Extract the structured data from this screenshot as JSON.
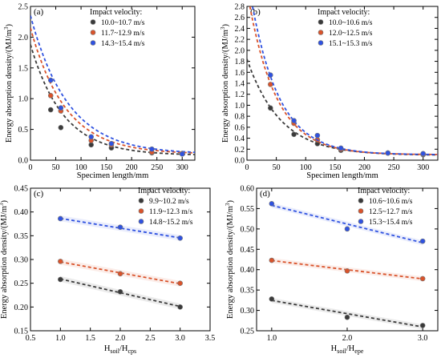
{
  "chart_data": [
    {
      "panel": "(a)",
      "type": "scatter",
      "xlabel": "Specimen length/mm",
      "ylabel": "Energy absorption density/(MJ/m3)",
      "xlim": [
        0,
        325
      ],
      "ylim": [
        0,
        2.5
      ],
      "xticks": [
        0,
        50,
        100,
        150,
        200,
        250,
        300
      ],
      "yticks": [
        0.0,
        0.5,
        1.0,
        1.5,
        2.0,
        2.5
      ],
      "legend_title": "Impact velocity:",
      "legend_position": "top-right",
      "series": [
        {
          "name": "10.0~10.7 m/s",
          "color": "#3a3a3a",
          "x": [
            40,
            60,
            120,
            160,
            240,
            300
          ],
          "y": [
            0.82,
            0.53,
            0.25,
            0.2,
            0.12,
            0.1
          ],
          "fit": {
            "a": 1.8,
            "k": 0.0155,
            "c": 0.08
          }
        },
        {
          "name": "11.7~12.9 m/s",
          "color": "#d9532b",
          "x": [
            40,
            60,
            120,
            160,
            240,
            300
          ],
          "y": [
            1.05,
            0.8,
            0.32,
            0.25,
            0.13,
            0.11
          ],
          "fit": {
            "a": 2.05,
            "k": 0.0145,
            "c": 0.1
          }
        },
        {
          "name": "14.3~15.4 m/s",
          "color": "#2f52e0",
          "x": [
            40,
            60,
            120,
            160,
            240,
            300
          ],
          "y": [
            1.3,
            0.85,
            0.38,
            0.27,
            0.18,
            0.1
          ],
          "fit": {
            "a": 2.25,
            "k": 0.0135,
            "c": 0.1
          }
        }
      ]
    },
    {
      "panel": "(b)",
      "type": "scatter",
      "xlabel": "Specimen length/mm",
      "ylabel": "Energy absorption density/(MJ/m3)",
      "xlim": [
        0,
        325
      ],
      "ylim": [
        0,
        2.8
      ],
      "xticks": [
        0,
        50,
        100,
        150,
        200,
        250,
        300
      ],
      "yticks": [
        0.0,
        0.2,
        0.4,
        0.6,
        0.8,
        1.0,
        1.2,
        1.4,
        1.6,
        1.8,
        2.0,
        2.2,
        2.4,
        2.6,
        2.8
      ],
      "legend_title": "Impact velocity:",
      "legend_position": "top-right",
      "series": [
        {
          "name": "10.0~10.6 m/s",
          "color": "#3a3a3a",
          "x": [
            40,
            80,
            120,
            160,
            240,
            300
          ],
          "y": [
            0.95,
            0.47,
            0.3,
            0.18,
            0.13,
            0.1
          ],
          "fit": {
            "a": 1.75,
            "k": 0.0175,
            "c": 0.09
          }
        },
        {
          "name": "12.0~12.5 m/s",
          "color": "#d9532b",
          "x": [
            40,
            80,
            120,
            160,
            240,
            300
          ],
          "y": [
            1.38,
            0.67,
            0.37,
            0.2,
            0.13,
            0.11
          ],
          "fit": {
            "a": 3.0,
            "k": 0.021,
            "c": 0.1
          }
        },
        {
          "name": "15.1~15.3 m/s",
          "color": "#2f52e0",
          "x": [
            40,
            80,
            120,
            160,
            240,
            300
          ],
          "y": [
            1.55,
            0.72,
            0.45,
            0.22,
            0.13,
            0.12
          ],
          "fit": {
            "a": 3.3,
            "k": 0.021,
            "c": 0.1
          }
        }
      ]
    },
    {
      "panel": "(c)",
      "type": "scatter",
      "xlabel_main": "H",
      "xlabel_sub1": "soil",
      "xlabel_mid": "/H",
      "xlabel_sub2": "cps",
      "ylabel": "Energy absorption density/(MJ/m3)",
      "xlim": [
        0.5,
        3.5
      ],
      "ylim": [
        0.15,
        0.45
      ],
      "xticks": [
        0.5,
        1.0,
        1.5,
        2.0,
        2.5,
        3.0,
        3.5
      ],
      "yticks": [
        0.15,
        0.2,
        0.25,
        0.3,
        0.35,
        0.4,
        0.45
      ],
      "legend_title": "Impact velocity:",
      "legend_position": "top-right",
      "series": [
        {
          "name": "9.9~10.2 m/s",
          "color": "#3a3a3a",
          "x": [
            1.0,
            2.0,
            3.0
          ],
          "y": [
            0.258,
            0.232,
            0.2
          ],
          "fit": {
            "m": -0.029,
            "b": 0.288
          }
        },
        {
          "name": "11.9~12.3 m/s",
          "color": "#d9532b",
          "x": [
            1.0,
            2.0,
            3.0
          ],
          "y": [
            0.296,
            0.27,
            0.25
          ],
          "fit": {
            "m": -0.023,
            "b": 0.318
          }
        },
        {
          "name": "14.8~15.2 m/s",
          "color": "#2f52e0",
          "x": [
            1.0,
            2.0,
            3.0
          ],
          "y": [
            0.386,
            0.368,
            0.345
          ],
          "fit": {
            "m": -0.0205,
            "b": 0.407
          }
        }
      ]
    },
    {
      "panel": "(d)",
      "type": "scatter",
      "xlabel_main": "H",
      "xlabel_sub1": "soil",
      "xlabel_mid": "/H",
      "xlabel_sub2": "epe",
      "ylabel": "Energy absorption density/(MJ/m3)",
      "xlim": [
        0.8,
        3.2
      ],
      "ylim": [
        0.25,
        0.6
      ],
      "xticks": [
        1.0,
        2.0,
        3.0
      ],
      "yticks": [
        0.25,
        0.3,
        0.35,
        0.4,
        0.45,
        0.5,
        0.55,
        0.6
      ],
      "legend_title": "Impact velocity:",
      "legend_position": "top-right",
      "series": [
        {
          "name": "10.6~10.6 m/s",
          "color": "#3a3a3a",
          "x": [
            1.0,
            2.0,
            3.0
          ],
          "y": [
            0.328,
            0.283,
            0.263
          ],
          "fit": {
            "m": -0.0325,
            "b": 0.357
          }
        },
        {
          "name": "12.5~12.7 m/s",
          "color": "#d9532b",
          "x": [
            1.0,
            2.0,
            3.0
          ],
          "y": [
            0.423,
            0.397,
            0.378
          ],
          "fit": {
            "m": -0.0225,
            "b": 0.445
          }
        },
        {
          "name": "15.3~15.4 m/s",
          "color": "#2f52e0",
          "x": [
            1.0,
            2.0,
            3.0
          ],
          "y": [
            0.562,
            0.5,
            0.47
          ],
          "fit": {
            "m": -0.046,
            "b": 0.604
          }
        }
      ]
    }
  ]
}
